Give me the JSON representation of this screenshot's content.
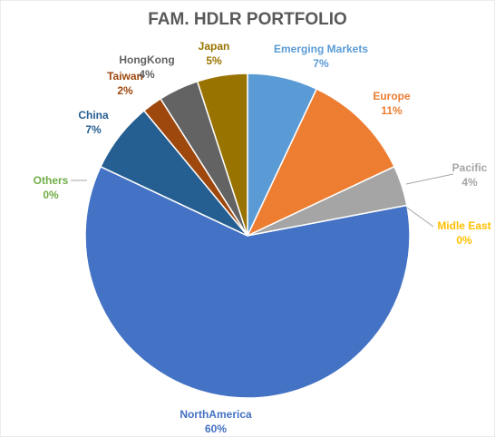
{
  "chart_data": {
    "type": "pie",
    "title": "FAM. HDLR PORTFOLIO",
    "categories": [
      "Emerging Markets",
      "Europe",
      "Pacific",
      "Midle East",
      "NorthAmerica",
      "Others",
      "China",
      "Taiwan",
      "HongKong",
      "Japan"
    ],
    "values": [
      7,
      11,
      4,
      0,
      60,
      0,
      7,
      2,
      4,
      5
    ],
    "value_labels": [
      "7%",
      "11%",
      "4%",
      "0%",
      "60%",
      "0%",
      "7%",
      "2%",
      "4%",
      "5%"
    ],
    "colors": [
      "#5b9bd5",
      "#ed7d31",
      "#a5a5a5",
      "#ffc000",
      "#4472c4",
      "#70ad47",
      "#255e91",
      "#9e480e",
      "#636363",
      "#997300"
    ]
  }
}
